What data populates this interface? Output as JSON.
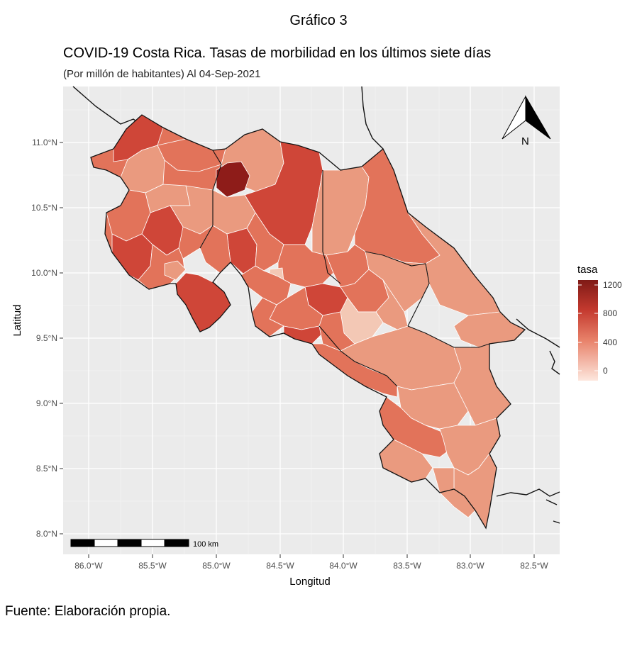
{
  "figure": {
    "caption": "Gráfico 3",
    "title": "COVID-19 Costa Rica. Tasas de morbilidad en los últimos siete días",
    "subtitle": "(Por millón de habitantes) Al 04-Sep-2021",
    "source": "Fuente: Elaboración propia."
  },
  "axes": {
    "xlabel": "Longitud",
    "ylabel": "Latitud",
    "x_ticks": [
      "86.0°W",
      "85.5°W",
      "85.0°W",
      "84.5°W",
      "84.0°W",
      "83.5°W",
      "83.0°W",
      "82.5°W"
    ],
    "y_ticks": [
      "11.0°N",
      "10.5°N",
      "10.0°N",
      "9.5°N",
      "9.0°N",
      "8.5°N",
      "8.0°N"
    ]
  },
  "legend": {
    "title": "tasa",
    "labels": [
      "1200",
      "800",
      "400",
      "0"
    ],
    "color_high": "#7f1a16",
    "color_low": "#fde7de"
  },
  "scale_bar": {
    "label": "100 km"
  },
  "north_arrow": {
    "label": "N"
  },
  "colors": {
    "panel_background": "#ebebeb",
    "gridline": "#ffffff",
    "region_dark": "#8e1c19",
    "region_high": "#cf4638",
    "region_mid": "#e2735a",
    "region_low": "#ea9a7f",
    "region_pale": "#f3c8b5"
  }
}
